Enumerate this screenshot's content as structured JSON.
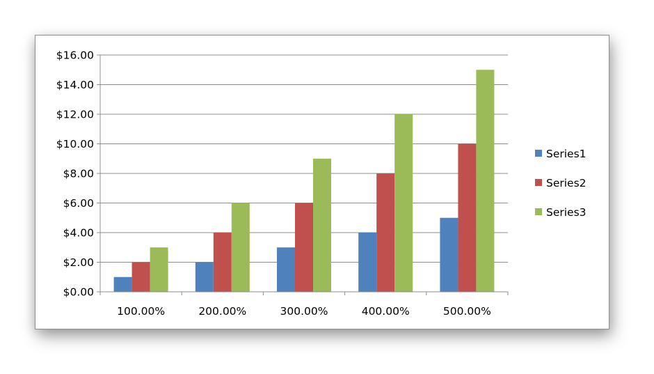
{
  "chart_data": {
    "type": "bar",
    "title": "",
    "xlabel": "",
    "ylabel": "",
    "categories": [
      "100.00%",
      "200.00%",
      "300.00%",
      "400.00%",
      "500.00%"
    ],
    "series": [
      {
        "name": "Series1",
        "values": [
          1,
          2,
          3,
          4,
          5
        ],
        "color": "#4f81bd"
      },
      {
        "name": "Series2",
        "values": [
          2,
          4,
          6,
          8,
          10
        ],
        "color": "#c0504d"
      },
      {
        "name": "Series3",
        "values": [
          3,
          6,
          9,
          12,
          15
        ],
        "color": "#9bbb59"
      }
    ],
    "ylim": [
      0,
      16
    ],
    "y_ticks": [
      0,
      2,
      4,
      6,
      8,
      10,
      12,
      14,
      16
    ],
    "y_tick_labels": [
      "$0.00",
      "$2.00",
      "$4.00",
      "$6.00",
      "$8.00",
      "$10.00",
      "$12.00",
      "$14.00",
      "$16.00"
    ],
    "grid": true,
    "legend_position": "right"
  }
}
